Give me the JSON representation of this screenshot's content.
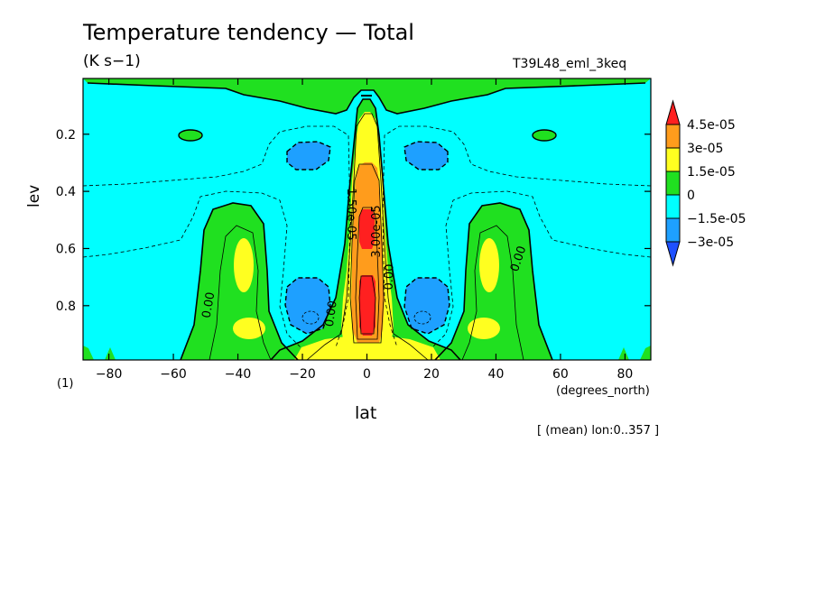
{
  "figure": {
    "title": "Temperature tendency — Total",
    "units": "(K s−1)",
    "experiment": "T39L48_eml_3keq",
    "multiplier": "(1)",
    "note": "[ (mean) lon:0..357 ]"
  },
  "chart_data": {
    "type": "heatmap",
    "title": "Temperature tendency — Total",
    "xlabel": "lat",
    "xunit": "(degrees_north)",
    "ylabel": "lev",
    "xlim": [
      -88,
      88
    ],
    "ylim": [
      0.99,
      0.005
    ],
    "y_reversed": true,
    "x_ticks": [
      -80,
      -60,
      -40,
      -20,
      0,
      20,
      40,
      60,
      80
    ],
    "x_tick_labels": [
      "-80",
      "-60",
      "-40",
      "-20",
      "0",
      "20",
      "40",
      "60",
      "80"
    ],
    "y_ticks": [
      0.2,
      0.4,
      0.6,
      0.8
    ],
    "y_tick_labels": [
      "0.2",
      "0.4",
      "0.6",
      "0.8"
    ],
    "colorbar": {
      "levels": [
        "4.5e-05",
        "3e-05",
        "1.5e-05",
        "0",
        "-1.5e-05",
        "-3e-05"
      ],
      "colors": [
        "#ff2020",
        "#ff9c1c",
        "#ffff20",
        "#20e020",
        "#00ffff",
        "#1ea0ff",
        "#1e50ff"
      ]
    },
    "contour_labels": [
      {
        "text": "0.00",
        "lat": -48,
        "lev": 0.8,
        "rot": -80
      },
      {
        "text": "0.00",
        "lat": -10,
        "lev": 0.83,
        "rot": -82
      },
      {
        "text": "1.50e-05",
        "lat": -6,
        "lev": 0.48,
        "rot": 90
      },
      {
        "text": "3.00e-05",
        "lat": 4,
        "lev": 0.54,
        "rot": -90
      },
      {
        "text": "0.00",
        "lat": 8,
        "lev": 0.7,
        "rot": -88
      },
      {
        "text": "0.00",
        "lat": 48,
        "lev": 0.64,
        "rot": -72
      }
    ]
  }
}
